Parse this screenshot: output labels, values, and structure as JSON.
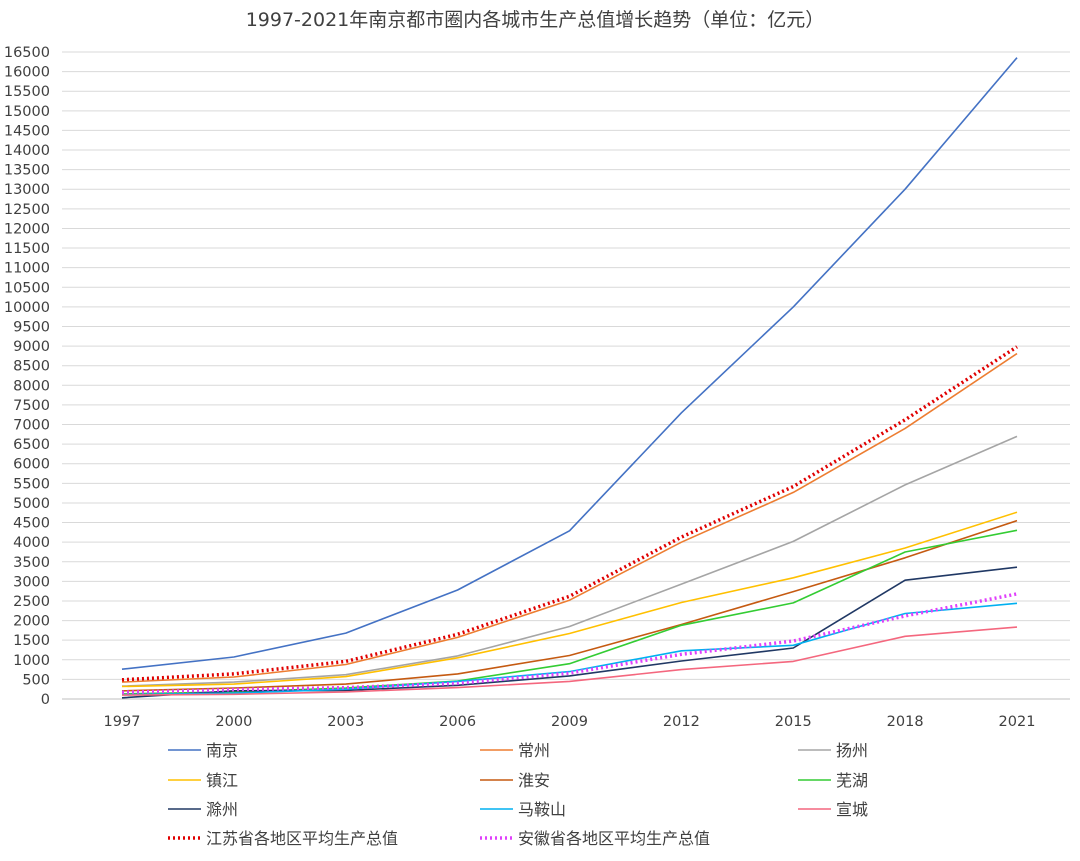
{
  "chart_data": {
    "type": "line",
    "title": "1997-2021年南京都市圈内各城市生产总值增长趋势（单位：亿元）",
    "xlabel": "",
    "ylabel": "",
    "x": [
      "1997",
      "2000",
      "2003",
      "2006",
      "2009",
      "2012",
      "2015",
      "2018",
      "2021"
    ],
    "ylim": [
      0,
      16500
    ],
    "ytick_step": 500,
    "grid": true,
    "legend_position": "bottom",
    "series": [
      {
        "name": "南京",
        "color": "#4472C4",
        "dashed": false,
        "values": [
          760,
          1070,
          1680,
          2780,
          4290,
          7300,
          10000,
          13000,
          16355
        ]
      },
      {
        "name": "常州",
        "color": "#ED7D31",
        "dashed": false,
        "values": [
          430,
          560,
          880,
          1570,
          2520,
          4000,
          5270,
          6900,
          8808
        ]
      },
      {
        "name": "扬州",
        "color": "#A5A5A5",
        "dashed": false,
        "values": [
          330,
          430,
          620,
          1100,
          1850,
          2930,
          4020,
          5460,
          6697
        ]
      },
      {
        "name": "镇江",
        "color": "#FFC000",
        "dashed": false,
        "values": [
          320,
          380,
          570,
          1050,
          1670,
          2460,
          3090,
          3850,
          4763
        ]
      },
      {
        "name": "淮安",
        "color": "#C55A11",
        "dashed": false,
        "values": [
          210,
          280,
          380,
          640,
          1110,
          1900,
          2740,
          3600,
          4550
        ]
      },
      {
        "name": "芜湖",
        "color": "#33CC33",
        "dashed": false,
        "values": [
          130,
          180,
          280,
          460,
          900,
          1880,
          2450,
          3750,
          4302
        ]
      },
      {
        "name": "滁州",
        "color": "#203864",
        "dashed": false,
        "values": [
          30,
          210,
          220,
          350,
          590,
          970,
          1300,
          3030,
          3362
        ]
      },
      {
        "name": "马鞍山",
        "color": "#00B0F0",
        "dashed": false,
        "values": [
          110,
          150,
          250,
          450,
          700,
          1230,
          1370,
          2180,
          2440
        ]
      },
      {
        "name": "宣城",
        "color": "#F4677E",
        "dashed": false,
        "values": [
          100,
          120,
          180,
          290,
          450,
          750,
          960,
          1600,
          1834
        ]
      },
      {
        "name": "江苏省各地区平均生产总值",
        "color": "#E00000",
        "dashed": true,
        "values": [
          490,
          640,
          960,
          1650,
          2620,
          4130,
          5420,
          7120,
          8983
        ]
      },
      {
        "name": "安徽省各地区平均生产总值",
        "color": "#E040FB",
        "dashed": true,
        "values": [
          170,
          240,
          290,
          400,
          660,
          1140,
          1480,
          2120,
          2680
        ]
      }
    ]
  }
}
